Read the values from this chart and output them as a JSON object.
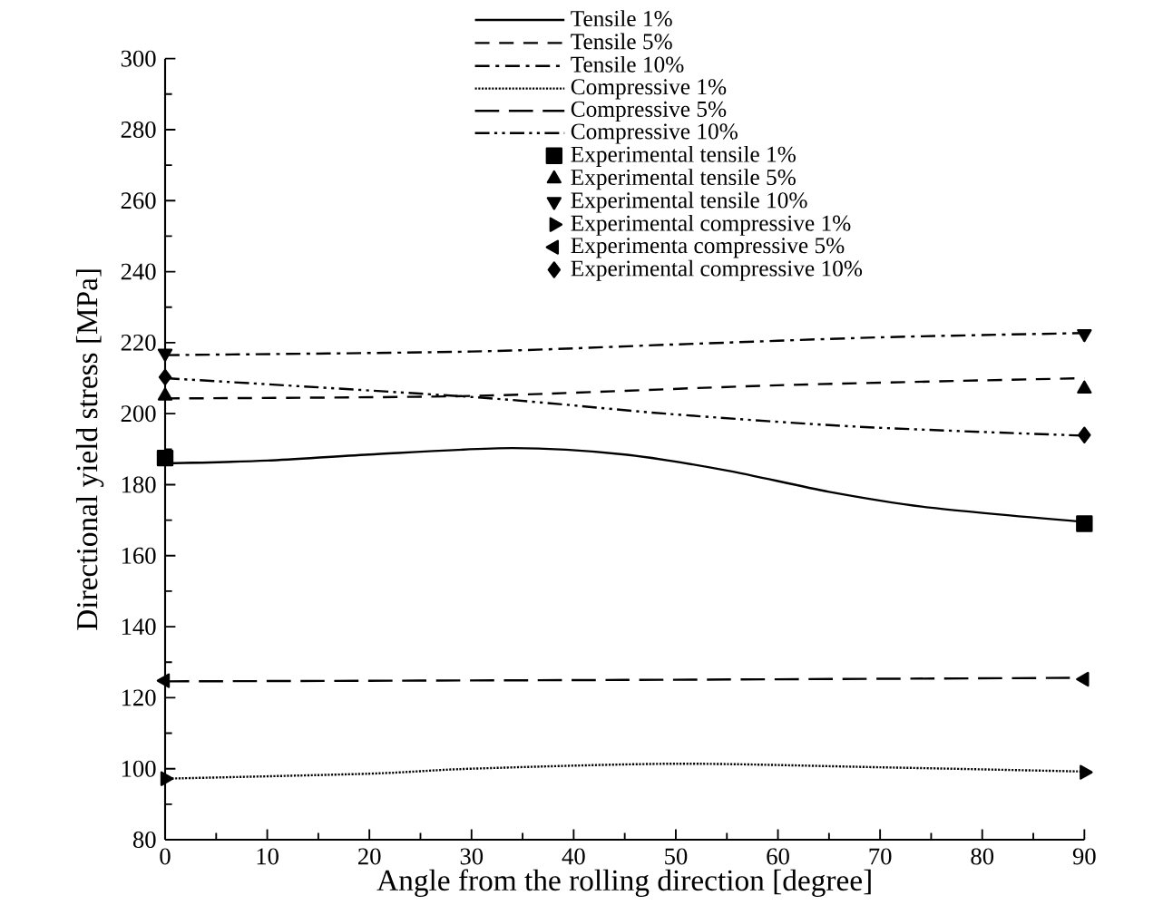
{
  "chart_data": {
    "type": "line",
    "xlabel": "Angle from the rolling direction [degree]",
    "ylabel": "Directional yield stress [MPa]",
    "xlim": [
      0,
      90
    ],
    "ylim": [
      80,
      300
    ],
    "xticks": [
      0,
      10,
      20,
      30,
      40,
      50,
      60,
      70,
      80,
      90
    ],
    "yticks": [
      80,
      100,
      120,
      140,
      160,
      180,
      200,
      220,
      240,
      260,
      280,
      300
    ],
    "legend": "top",
    "grid": false,
    "series": [
      {
        "name": "Tensile 1%",
        "color": "#000000",
        "line_style": "solid",
        "marker": "none",
        "x": [
          0,
          10,
          20,
          34,
          45,
          55,
          65,
          75,
          90
        ],
        "values": [
          186,
          186.8,
          188.5,
          190.3,
          188.5,
          184,
          178,
          173.5,
          169.5
        ]
      },
      {
        "name": "Tensile 5%",
        "color": "#000000",
        "line_style": "dashed",
        "marker": "none",
        "x": [
          0,
          30,
          60,
          90
        ],
        "values": [
          204.3,
          205,
          208,
          210
        ]
      },
      {
        "name": "Tensile 10%",
        "color": "#000000",
        "line_style": "dashdot",
        "marker": "none",
        "x": [
          0,
          30,
          50,
          70,
          90
        ],
        "values": [
          216.5,
          217.5,
          219.5,
          221.5,
          222.7
        ]
      },
      {
        "name": "Compressive 1%",
        "color": "#000000",
        "line_style": "dotted",
        "marker": "none",
        "x": [
          0,
          20,
          30,
          50,
          70,
          90
        ],
        "values": [
          97.2,
          98.6,
          100,
          101.4,
          100.4,
          99.2
        ]
      },
      {
        "name": "Compressive 5%",
        "color": "#000000",
        "line_style": "longdash",
        "marker": "none",
        "x": [
          0,
          45,
          90
        ],
        "values": [
          124.6,
          125,
          125.6
        ]
      },
      {
        "name": "Compressive 10%",
        "color": "#000000",
        "line_style": "dashdotdot",
        "marker": "none",
        "x": [
          0,
          31,
          49,
          68,
          90
        ],
        "values": [
          210,
          204.5,
          200,
          196.3,
          193.8
        ]
      },
      {
        "name": "Experimental tensile 1%",
        "type": "scatter",
        "color": "#000000",
        "marker": "square",
        "x": [
          0,
          90
        ],
        "values": [
          187.5,
          169
        ]
      },
      {
        "name": "Experimental tensile 5%",
        "type": "scatter",
        "color": "#000000",
        "marker": "triangle",
        "x": [
          0,
          90
        ],
        "values": [
          205,
          207
        ]
      },
      {
        "name": "Experimental tensile 10%",
        "type": "scatter",
        "color": "#000000",
        "marker": "triangle-down",
        "x": [
          0,
          90
        ],
        "values": [
          217,
          222.5
        ]
      },
      {
        "name": "Experimental compressive 1%",
        "type": "scatter",
        "color": "#000000",
        "marker": "triangle-right",
        "x": [
          0,
          90
        ],
        "values": [
          97.2,
          99
        ]
      },
      {
        "name": "Experimenta compressive 5%",
        "type": "scatter",
        "color": "#000000",
        "marker": "triangle-left",
        "x": [
          0,
          90
        ],
        "values": [
          124.8,
          125.2
        ]
      },
      {
        "name": "Experimental compressive 10%",
        "type": "scatter",
        "color": "#000000",
        "marker": "diamond",
        "x": [
          0,
          90
        ],
        "values": [
          210.3,
          194
        ]
      }
    ]
  }
}
